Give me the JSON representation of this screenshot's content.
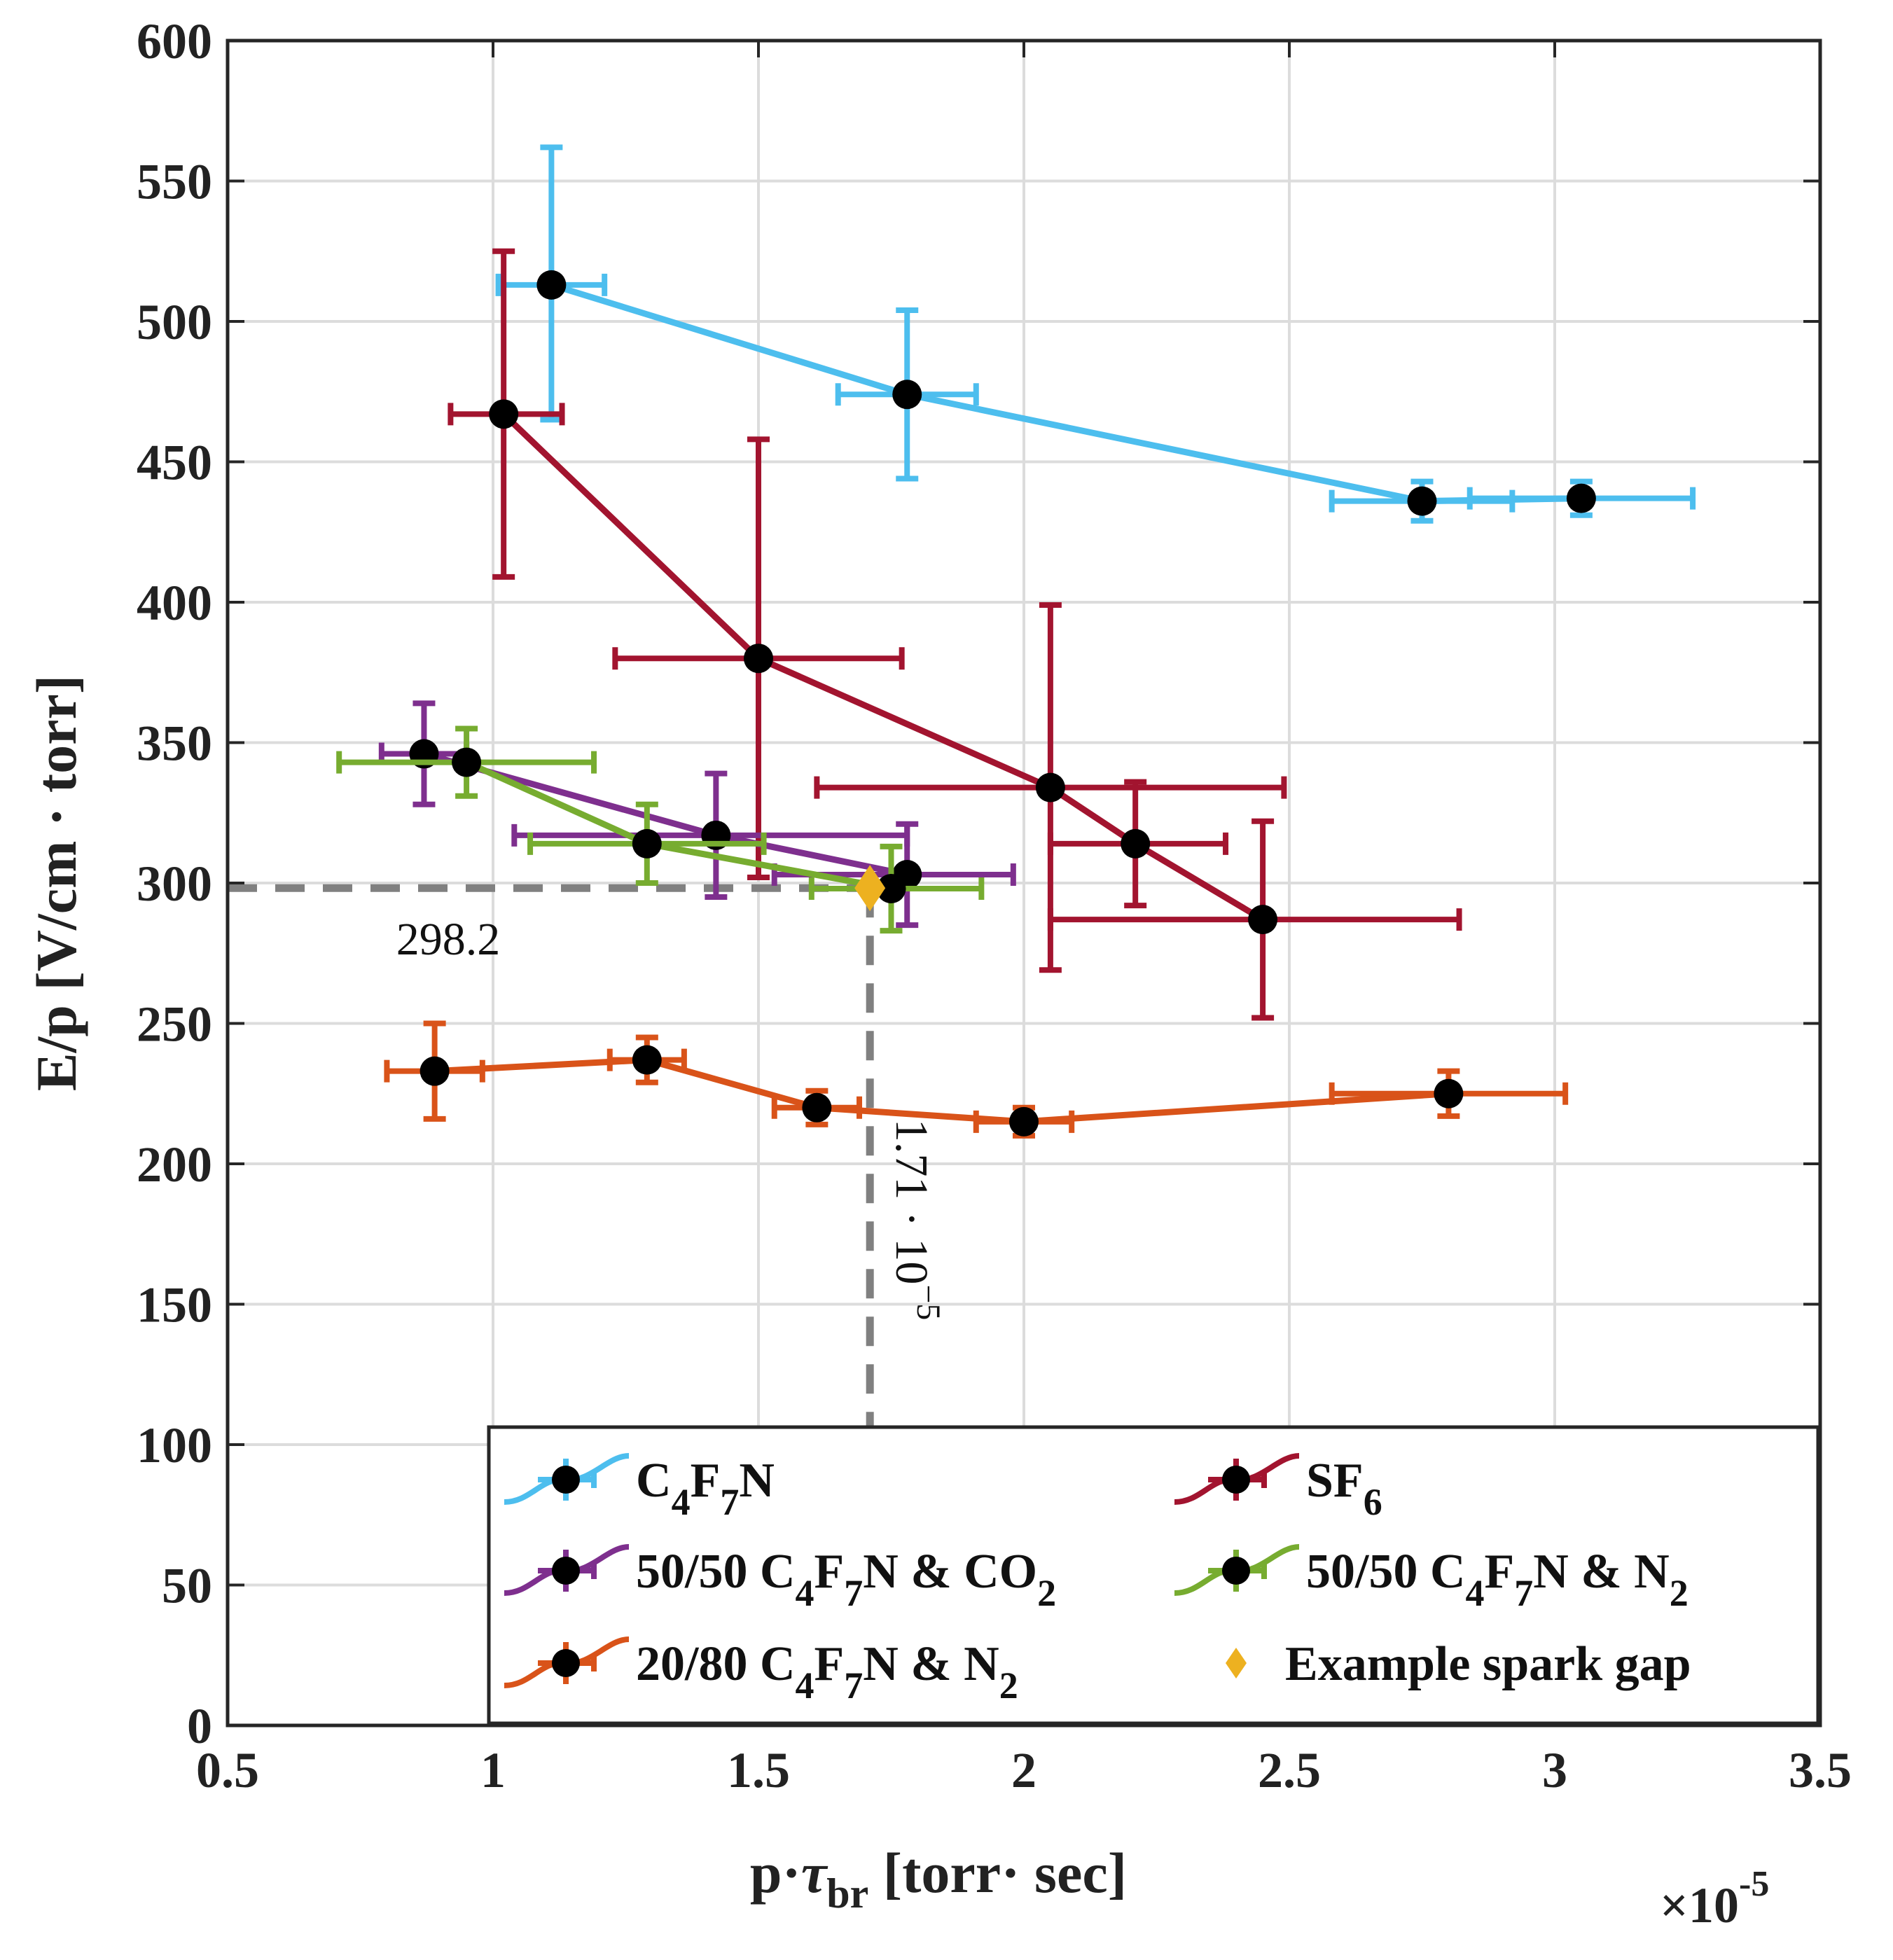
{
  "chart_data": {
    "type": "scatter",
    "x_tick_labels": [
      "0.5",
      "1",
      "1.5",
      "2",
      "2.5",
      "3",
      "3.5"
    ],
    "y_tick_labels": [
      "0",
      "50",
      "100",
      "150",
      "200",
      "250",
      "300",
      "350",
      "400",
      "450",
      "500",
      "550",
      "600"
    ],
    "x_ticks": [
      0.5,
      1,
      1.5,
      2,
      2.5,
      3,
      3.5
    ],
    "y_ticks": [
      0,
      50,
      100,
      150,
      200,
      250,
      300,
      350,
      400,
      450,
      500,
      550,
      600
    ],
    "xlim": [
      0.5,
      3.5
    ],
    "ylim": [
      0,
      600
    ],
    "x_scale_label": {
      "base": "×10",
      "exponent": "-5"
    },
    "xlabel": {
      "pre": "p",
      "dot": "·",
      "tau": "τ",
      "sub": "br",
      "post": " [torr· sec]"
    },
    "ylabel": "E/p [V/cm · torr]",
    "grid": true,
    "legend_position": "bottom-right",
    "series": [
      {
        "name": "C4F7N",
        "legend": [
          {
            "t": "C"
          },
          {
            "t": "4",
            "sub": true
          },
          {
            "t": "F"
          },
          {
            "t": "7",
            "sub": true
          },
          {
            "t": "N"
          }
        ],
        "color": "#4dbeee",
        "points": [
          {
            "x": 1.11,
            "y": 513,
            "xerr": [
              0.1,
              0.1
            ],
            "yerr": [
              48,
              49
            ]
          },
          {
            "x": 1.78,
            "y": 474,
            "xerr": [
              0.13,
              0.13
            ],
            "yerr": [
              30,
              30
            ]
          },
          {
            "x": 2.75,
            "y": 436,
            "xerr": [
              0.17,
              0.17
            ],
            "yerr": [
              7,
              7
            ]
          },
          {
            "x": 3.05,
            "y": 437,
            "xerr": [
              0.21,
              0.21
            ],
            "yerr": [
              6,
              6
            ]
          }
        ]
      },
      {
        "name": "SF6",
        "legend": [
          {
            "t": "SF"
          },
          {
            "t": "6",
            "sub": true
          }
        ],
        "color": "#a2142f",
        "points": [
          {
            "x": 1.02,
            "y": 467,
            "xerr": [
              0.1,
              0.11
            ],
            "yerr": [
              58,
              58
            ]
          },
          {
            "x": 1.5,
            "y": 380,
            "xerr": [
              0.27,
              0.27
            ],
            "yerr": [
              78,
              78
            ]
          },
          {
            "x": 2.05,
            "y": 334,
            "xerr": [
              0.44,
              0.44
            ],
            "yerr": [
              65,
              65
            ]
          },
          {
            "x": 2.21,
            "y": 314,
            "xerr": [
              0.16,
              0.17
            ],
            "yerr": [
              22,
              22
            ]
          },
          {
            "x": 2.45,
            "y": 287,
            "xerr": [
              0.4,
              0.37
            ],
            "yerr": [
              35,
              35
            ]
          }
        ]
      },
      {
        "name": "50/50 C4F7N & CO2",
        "legend": [
          {
            "t": "50/50 C"
          },
          {
            "t": "4",
            "sub": true
          },
          {
            "t": "F"
          },
          {
            "t": "7",
            "sub": true
          },
          {
            "t": "N & CO"
          },
          {
            "t": "2",
            "sub": true
          }
        ],
        "color": "#7e2f8e",
        "points": [
          {
            "x": 0.87,
            "y": 346,
            "xerr": [
              0.08,
              0.08
            ],
            "yerr": [
              18,
              18
            ]
          },
          {
            "x": 1.42,
            "y": 317,
            "xerr": [
              0.38,
              0.36
            ],
            "yerr": [
              22,
              22
            ]
          },
          {
            "x": 1.78,
            "y": 303,
            "xerr": [
              0.25,
              0.2
            ],
            "yerr": [
              18,
              18
            ]
          }
        ]
      },
      {
        "name": "50/50 C4F7N & N2",
        "legend": [
          {
            "t": "50/50 C"
          },
          {
            "t": "4",
            "sub": true
          },
          {
            "t": "F"
          },
          {
            "t": "7",
            "sub": true
          },
          {
            "t": "N & N"
          },
          {
            "t": "2",
            "sub": true
          }
        ],
        "color": "#77ac30",
        "points": [
          {
            "x": 0.95,
            "y": 343,
            "xerr": [
              0.24,
              0.24
            ],
            "yerr": [
              12,
              12
            ]
          },
          {
            "x": 1.29,
            "y": 314,
            "xerr": [
              0.22,
              0.22
            ],
            "yerr": [
              14,
              14
            ]
          },
          {
            "x": 1.75,
            "y": 298,
            "xerr": [
              0.15,
              0.17
            ],
            "yerr": [
              15,
              15
            ]
          }
        ]
      },
      {
        "name": "20/80 C4F7N & N2",
        "legend": [
          {
            "t": "20/80 C"
          },
          {
            "t": "4",
            "sub": true
          },
          {
            "t": "F"
          },
          {
            "t": "7",
            "sub": true
          },
          {
            "t": "N & N"
          },
          {
            "t": "2",
            "sub": true
          }
        ],
        "color": "#d95319",
        "points": [
          {
            "x": 0.89,
            "y": 233,
            "xerr": [
              0.09,
              0.09
            ],
            "yerr": [
              17,
              17
            ]
          },
          {
            "x": 1.29,
            "y": 237,
            "xerr": [
              0.07,
              0.07
            ],
            "yerr": [
              8,
              8
            ]
          },
          {
            "x": 1.61,
            "y": 220,
            "xerr": [
              0.08,
              0.08
            ],
            "yerr": [
              6,
              6
            ]
          },
          {
            "x": 2.0,
            "y": 215,
            "xerr": [
              0.09,
              0.09
            ],
            "yerr": [
              5,
              5
            ]
          },
          {
            "x": 2.8,
            "y": 225,
            "xerr": [
              0.22,
              0.22
            ],
            "yerr": [
              8,
              8
            ]
          }
        ]
      }
    ],
    "example_point": {
      "name": "Example spark gap",
      "x": 1.71,
      "y": 298.2,
      "color": "#edb120"
    },
    "annotations": {
      "y_value_label": "298.2",
      "x_value_label": {
        "base": "1.71 · 10",
        "exponent": "−5"
      }
    }
  }
}
